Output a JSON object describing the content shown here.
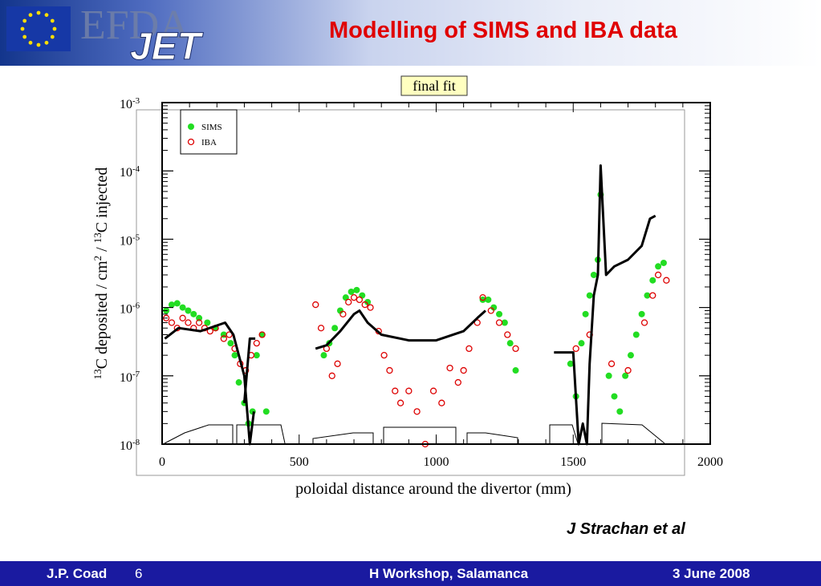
{
  "header": {
    "logo_text_efda": "EFDA",
    "logo_text_jet": "JET",
    "title": "Modelling of SIMS and IBA data"
  },
  "footer": {
    "left": "J.P. Coad",
    "page": "6",
    "center": "H Workshop, Salamanca",
    "right": "3 June 2008"
  },
  "author": "J Strachan et al",
  "colors": {
    "title": "#e00000",
    "footer_bg": "#1a1aa0",
    "sims": "#22dd22",
    "iba": "#dd0000",
    "model": "#000000",
    "fit_label_bg": "#ffffc0"
  },
  "chart_data": {
    "type": "scatter",
    "title": "final fit",
    "xlabel": "poloidal distance around the divertor (mm)",
    "ylabel_parts": [
      "13",
      "C deposited / cm",
      "2",
      " / ",
      "13",
      "C injected"
    ],
    "xlim": [
      0,
      2000
    ],
    "ylim": [
      1e-08,
      0.001
    ],
    "yscale": "log",
    "x_ticks": [
      "0",
      "500",
      "1000",
      "1500",
      "2000"
    ],
    "y_ticks": [
      {
        "base": "10",
        "exp": "-3"
      },
      {
        "base": "10",
        "exp": "-4"
      },
      {
        "base": "10",
        "exp": "-5"
      },
      {
        "base": "10",
        "exp": "-6"
      },
      {
        "base": "10",
        "exp": "-7"
      },
      {
        "base": "10",
        "exp": "-8"
      }
    ],
    "legend": {
      "position": "top-left",
      "entries": [
        "SIMS",
        "IBA"
      ]
    },
    "series": [
      {
        "name": "SIMS",
        "marker": "filled-circle",
        "x": [
          15,
          35,
          55,
          75,
          95,
          115,
          135,
          165,
          195,
          225,
          250,
          265,
          280,
          300,
          315,
          330,
          345,
          365,
          380,
          590,
          610,
          630,
          650,
          670,
          690,
          710,
          730,
          750,
          1170,
          1190,
          1210,
          1230,
          1250,
          1270,
          1290,
          1490,
          1510,
          1530,
          1545,
          1560,
          1575,
          1590,
          1600,
          1630,
          1650,
          1670,
          1690,
          1710,
          1730,
          1750,
          1770,
          1790,
          1810,
          1830
        ],
        "y": [
          9e-07,
          1.1e-06,
          1.15e-06,
          1e-06,
          9e-07,
          8e-07,
          7e-07,
          6e-07,
          5e-07,
          4e-07,
          3e-07,
          2e-07,
          8e-08,
          4e-08,
          2e-08,
          3e-08,
          2e-07,
          4e-07,
          3e-08,
          2e-07,
          3e-07,
          5e-07,
          9e-07,
          1.4e-06,
          1.7e-06,
          1.8e-06,
          1.5e-06,
          1.2e-06,
          1.3e-06,
          1.3e-06,
          1e-06,
          8e-07,
          6e-07,
          3e-07,
          1.2e-07,
          1.5e-07,
          5e-08,
          3e-07,
          8e-07,
          1.5e-06,
          3e-06,
          5e-06,
          4.5e-05,
          1e-07,
          5e-08,
          3e-08,
          1e-07,
          2e-07,
          4e-07,
          8e-07,
          1.5e-06,
          2.5e-06,
          4e-06,
          4.5e-06
        ]
      },
      {
        "name": "IBA",
        "marker": "open-circle",
        "x": [
          15,
          35,
          55,
          75,
          95,
          115,
          135,
          155,
          175,
          195,
          225,
          245,
          265,
          285,
          305,
          325,
          345,
          365,
          560,
          580,
          600,
          620,
          640,
          660,
          680,
          700,
          720,
          740,
          760,
          790,
          810,
          830,
          850,
          870,
          900,
          930,
          960,
          990,
          1020,
          1050,
          1080,
          1100,
          1120,
          1150,
          1170,
          1200,
          1230,
          1260,
          1290,
          1510,
          1560,
          1640,
          1700,
          1760,
          1790,
          1810,
          1840
        ],
        "y": [
          7e-07,
          6e-07,
          5e-07,
          7e-07,
          6e-07,
          5e-07,
          6e-07,
          5e-07,
          4.5e-07,
          5e-07,
          3.5e-07,
          4e-07,
          2.5e-07,
          1.5e-07,
          1.2e-07,
          2e-07,
          3e-07,
          4e-07,
          1.1e-06,
          5e-07,
          2.5e-07,
          1e-07,
          1.5e-07,
          8e-07,
          1.2e-06,
          1.4e-06,
          1.3e-06,
          1.1e-06,
          1e-06,
          4.5e-07,
          2e-07,
          1.2e-07,
          6e-08,
          4e-08,
          6e-08,
          3e-08,
          1e-08,
          6e-08,
          4e-08,
          1.3e-07,
          8e-08,
          1.2e-07,
          2.5e-07,
          6e-07,
          1.4e-06,
          9e-07,
          6e-07,
          4e-07,
          2.5e-07,
          2.5e-07,
          4e-07,
          1.5e-07,
          1.2e-07,
          6e-07,
          1.5e-06,
          3e-06,
          2.5e-06
        ]
      },
      {
        "name": "",
        "marker": "line",
        "segments": [
          {
            "x": [
              10,
              60,
              140,
              230,
              260,
              300,
              320,
              335
            ],
            "y": [
              3.5e-07,
              5e-07,
              4.5e-07,
              6e-07,
              4e-07,
              1e-07,
              1e-08,
              3e-08
            ]
          },
          {
            "x": [
              300,
              320,
              340
            ],
            "y": [
              4e-08,
              3.5e-07,
              3.5e-07
            ]
          },
          {
            "x": [
              560,
              600,
              650,
              700,
              720,
              750,
              800,
              900,
              1000,
              1100,
              1150,
              1180
            ],
            "y": [
              2.5e-07,
              2.8e-07,
              4.5e-07,
              8e-07,
              9e-07,
              6e-07,
              4e-07,
              3.3e-07,
              3.3e-07,
              4.5e-07,
              7e-07,
              9e-07
            ]
          },
          {
            "x": [
              1430,
              1470,
              1500,
              1520,
              1535,
              1550,
              1560,
              1575,
              1590,
              1600,
              1620,
              1650,
              1700,
              1750,
              1780,
              1800
            ],
            "y": [
              2.2e-07,
              2.2e-07,
              2.2e-07,
              1e-08,
              2e-08,
              1e-08,
              1.5e-07,
              1.5e-06,
              3e-06,
              0.00012,
              3e-06,
              4e-06,
              5e-06,
              8e-06,
              2e-05,
              2.2e-05
            ]
          }
        ]
      }
    ]
  }
}
